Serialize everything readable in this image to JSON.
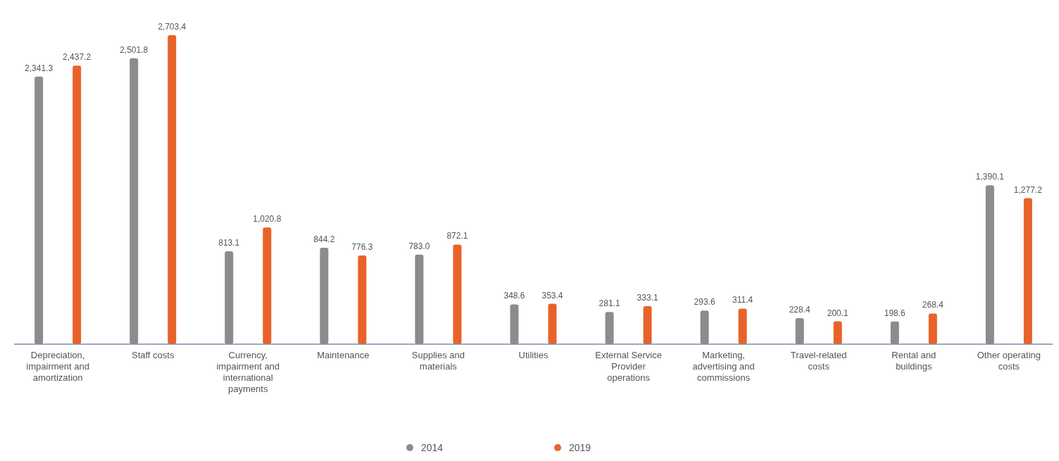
{
  "chart_data": {
    "type": "bar",
    "categories": [
      "Depreciation, impairment and amortization",
      "Staff costs",
      "Currency, impairment and international payments",
      "Maintenance",
      "Supplies and materials",
      "Utilities",
      "External Service Provider operations",
      "Marketing, advertising and commissions",
      "Travel-related costs",
      "Rental and buildings",
      "Other operating costs"
    ],
    "series": [
      {
        "name": "2014",
        "color": "#8c8c8c",
        "values": [
          2341.3,
          2501.8,
          813.1,
          844.2,
          783.0,
          348.6,
          281.1,
          293.6,
          228.4,
          198.6,
          1390.1
        ],
        "value_labels": [
          "2,341.3",
          "2,501.8",
          "813.1",
          "844.2",
          "783.0",
          "348.6",
          "281.1",
          "293.6",
          "228.4",
          "198.6",
          "1,390.1"
        ]
      },
      {
        "name": "2019",
        "color": "#e8632a",
        "values": [
          2437.2,
          2703.4,
          1020.8,
          776.3,
          872.1,
          353.4,
          333.1,
          311.4,
          200.1,
          268.4,
          1277.2
        ],
        "value_labels": [
          "2,437.2",
          "2,703.4",
          "1,020.8",
          "776.3",
          "872.1",
          "353.4",
          "333.1",
          "311.4",
          "200.1",
          "268.4",
          "1,277.2"
        ]
      }
    ],
    "legend": "bottom"
  }
}
